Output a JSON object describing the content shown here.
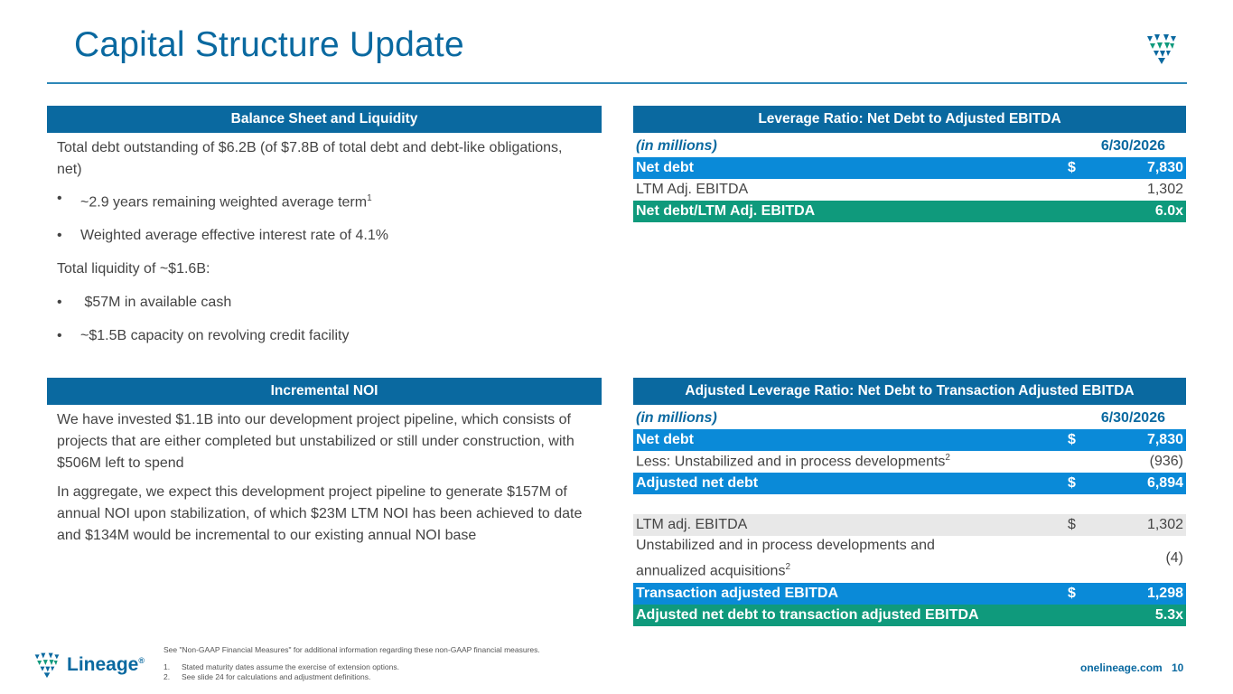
{
  "title": "Capital Structure Update",
  "balance": {
    "header": "Balance Sheet and Liquidity",
    "p1": "Total debt outstanding of $6.2B (of $7.8B of total debt and debt-like obligations, net)",
    "b1": "~2.9 years remaining weighted average term",
    "b1_sup": "1",
    "b2": "Weighted average effective interest rate of 4.1%",
    "p2": "Total liquidity of ~$1.6B:",
    "b3": " $57M in available cash",
    "b4": "~$1.5B capacity on revolving credit facility",
    "bullet": "•"
  },
  "noi": {
    "header": "Incremental NOI",
    "p1": "We have invested $1.1B into our development project pipeline, which consists of projects that are either completed but unstabilized or still under construction, with $506M left to spend",
    "p2": "In aggregate, we expect this development project pipeline to generate $157M of annual NOI upon stabilization, of which $23M LTM NOI has been achieved to date and $134M would be incremental to our existing annual NOI base"
  },
  "leverage": {
    "header": "Leverage Ratio: Net Debt to Adjusted EBITDA",
    "units": "(in millions)",
    "date": "6/30/2026",
    "net_debt_label": "Net debt",
    "net_debt_cur": "$",
    "net_debt_val": "7,830",
    "ebitda_label": "LTM Adj. EBITDA",
    "ebitda_val": "1,302",
    "ratio_label": "Net debt/LTM Adj. EBITDA",
    "ratio_val": "6.0x"
  },
  "adjusted": {
    "header": "Adjusted Leverage Ratio: Net Debt to Transaction Adjusted EBITDA",
    "units": "(in millions)",
    "date": "6/30/2026",
    "net_debt_label": "Net debt",
    "net_debt_cur": "$",
    "net_debt_val": "7,830",
    "less_label": "Less: Unstabilized and in process developments",
    "less_sup": "2",
    "less_val": "(936)",
    "adj_net_label": "Adjusted net debt",
    "adj_net_cur": "$",
    "adj_net_val": "6,894",
    "ltm_label": "LTM adj. EBITDA",
    "ltm_cur": "$",
    "ltm_val": "1,302",
    "unstab_label": "Unstabilized and in process developments and annualized acquisitions",
    "unstab_sup": "2",
    "unstab_val": "(4)",
    "trans_label": "Transaction adjusted EBITDA",
    "trans_cur": "$",
    "trans_val": "1,298",
    "ratio_label": "Adjusted net debt to transaction adjusted EBITDA",
    "ratio_val": "5.3x"
  },
  "footer": {
    "note": "See \"Non-GAAP Financial Measures\" for additional information regarding these non-GAAP financial measures.",
    "fn1_num": "1.",
    "fn1": "Stated maturity dates assume the exercise of extension options.",
    "fn2_num": "2.",
    "fn2": "See slide 24 for calculations and adjustment definitions.",
    "brand": "Lineage",
    "brand_mark": "®",
    "site": "onelineage.com",
    "page": "10"
  },
  "colors": {
    "brand_blue": "#0a69a0",
    "row_blue": "#0a8ad8",
    "row_green": "#0f9a7c"
  }
}
